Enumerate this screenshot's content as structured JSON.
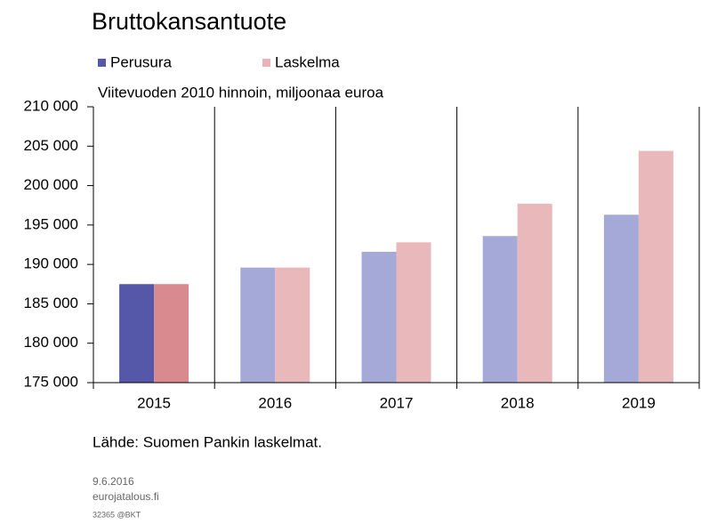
{
  "chart_data": {
    "type": "bar",
    "title": "Bruttokansantuote",
    "subtitle": "Viitevuoden 2010 hinnoin, miljoonaa euroa",
    "source": "Lähde: Suomen Pankin laskelmat.",
    "footer": [
      "9.6.2016",
      "eurojatalous.fi",
      "32365 @BKT"
    ],
    "categories": [
      "2015",
      "2016",
      "2017",
      "2018",
      "2019"
    ],
    "series": [
      {
        "name": "Perusura",
        "color": "#5558a8",
        "colors": [
          "#5558a8",
          "#a4a9d8",
          "#a4a9d8",
          "#a4a9d8",
          "#a4a9d8"
        ],
        "values": [
          187500,
          189600,
          191600,
          193600,
          196300
        ]
      },
      {
        "name": "Laskelma",
        "color": "#e8b3b7",
        "colors": [
          "#d98a8f",
          "#e8b8bb",
          "#e8b8bb",
          "#e8b8bb",
          "#e8b8bb"
        ],
        "values": [
          187500,
          189600,
          192800,
          197700,
          204400
        ]
      }
    ],
    "ylim": [
      175000,
      210000
    ],
    "yticks": [
      {
        "value": 175000,
        "label": "175 000"
      },
      {
        "value": 180000,
        "label": "180 000"
      },
      {
        "value": 185000,
        "label": "185 000"
      },
      {
        "value": 190000,
        "label": "190 000"
      },
      {
        "value": 195000,
        "label": "195 000"
      },
      {
        "value": 200000,
        "label": "200 000"
      },
      {
        "value": 205000,
        "label": "205 000"
      },
      {
        "value": 210000,
        "label": "210 000"
      }
    ],
    "grid": false
  }
}
